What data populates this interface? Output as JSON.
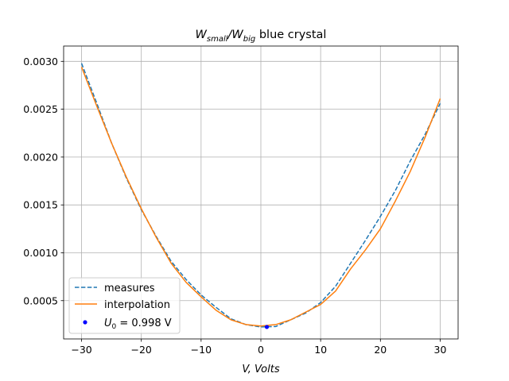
{
  "chart_data": {
    "type": "line",
    "title": {
      "main": "W",
      "sub1": "small",
      "slash": "/W",
      "sub2": "big",
      "rest": " blue crystal"
    },
    "xlabel": "V, Volts",
    "ylabel": "",
    "xlim": [
      -33,
      33
    ],
    "ylim": [
      0.0001,
      0.00316
    ],
    "xticks": [
      -30,
      -20,
      -10,
      0,
      10,
      20,
      30
    ],
    "yticks": [
      0.0005,
      0.001,
      0.0015,
      0.002,
      0.0025,
      0.003
    ],
    "xtick_labels": [
      "−30",
      "−20",
      "−10",
      "0",
      "10",
      "20",
      "30"
    ],
    "ytick_labels": [
      "0.0005",
      "0.0010",
      "0.0015",
      "0.0020",
      "0.0025",
      "0.0030"
    ],
    "grid": true,
    "legend_position": "lower-left",
    "series": [
      {
        "name": "measures",
        "style": "dashed",
        "color": "#1f77b4",
        "x": [
          -30,
          -27.5,
          -25,
          -22.5,
          -20,
          -17.5,
          -15,
          -12.5,
          -10,
          -7.5,
          -5,
          -2.5,
          0,
          2.5,
          5,
          7.5,
          10,
          12.5,
          15,
          17.5,
          20,
          22.5,
          25,
          27.5,
          30
        ],
        "y": [
          0.00298,
          0.00257,
          0.00215,
          0.00178,
          0.00145,
          0.00117,
          0.00091,
          0.00072,
          0.00056,
          0.00043,
          0.00031,
          0.00025,
          0.000225,
          0.00023,
          0.0003,
          0.00037,
          0.00048,
          0.00065,
          0.00089,
          0.00113,
          0.00138,
          0.00165,
          0.00196,
          0.00224,
          0.00256
        ]
      },
      {
        "name": "interpolation",
        "style": "solid",
        "color": "#ff7f0e",
        "x": [
          -30,
          -27.5,
          -25,
          -22.5,
          -20,
          -17.5,
          -15,
          -12.5,
          -10,
          -7.5,
          -5,
          -2.5,
          0,
          2.5,
          5,
          7.5,
          10,
          12.5,
          15,
          17.5,
          20,
          22.5,
          25,
          27.5,
          30
        ],
        "y": [
          0.00294,
          0.00254,
          0.00215,
          0.00179,
          0.00146,
          0.00116,
          0.00089,
          0.00069,
          0.00054,
          0.0004,
          0.0003,
          0.00025,
          0.000235,
          0.00025,
          0.0003,
          0.00038,
          0.00046,
          0.0006,
          0.00083,
          0.00103,
          0.00125,
          0.00154,
          0.00185,
          0.00221,
          0.00261
        ]
      },
      {
        "name": "U0 = 0.998 V",
        "legend_label": {
          "var": "U",
          "sub": "0",
          "rest": " = 0.998 V"
        },
        "style": "point",
        "color": "#0000ff",
        "x": [
          0.998
        ],
        "y": [
          0.000225
        ]
      }
    ]
  }
}
